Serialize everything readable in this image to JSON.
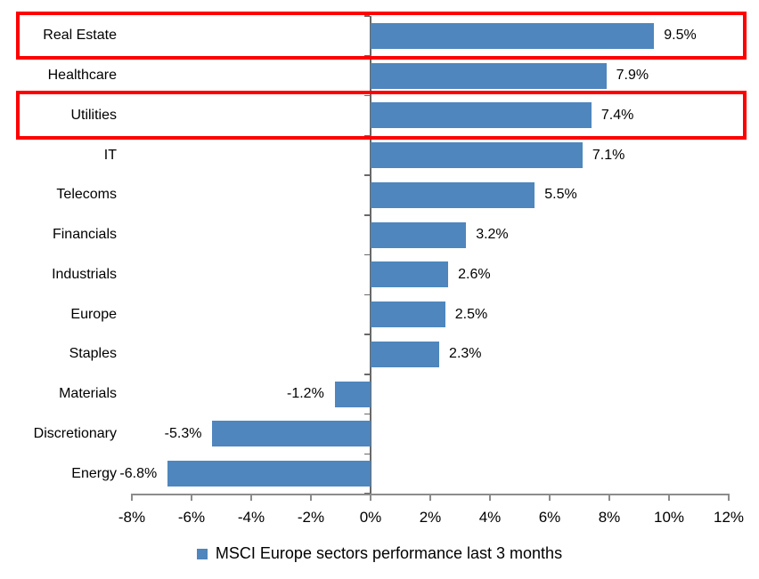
{
  "chart_data": {
    "type": "bar",
    "orientation": "horizontal",
    "title": "",
    "categories": [
      "Real Estate",
      "Healthcare",
      "Utilities",
      "IT",
      "Telecoms",
      "Financials",
      "Industrials",
      "Europe",
      "Staples",
      "Materials",
      "Discretionary",
      "Energy"
    ],
    "values": [
      9.5,
      7.9,
      7.4,
      7.1,
      5.5,
      3.2,
      2.6,
      2.5,
      2.3,
      -1.2,
      -5.3,
      -6.8
    ],
    "value_labels": [
      "9.5%",
      "7.9%",
      "7.4%",
      "7.1%",
      "5.5%",
      "3.2%",
      "2.6%",
      "2.5%",
      "2.3%",
      "-1.2%",
      "-5.3%",
      "-6.8%"
    ],
    "xlim": [
      -8,
      12
    ],
    "x_tick_labels": [
      "-8%",
      "-6%",
      "-4%",
      "-2%",
      "0%",
      "2%",
      "4%",
      "6%",
      "8%",
      "10%",
      "12%"
    ],
    "grid": false,
    "legend_position": "bottom",
    "highlighted_categories": [
      "Real Estate",
      "Utilities"
    ],
    "colors": {
      "bar": "#4E86BD",
      "highlight_box": "#FF0000",
      "zero_axis": "#696969",
      "x_axis": "#8C8C8C",
      "text": "#000000"
    }
  },
  "legend": {
    "label": "MSCI Europe sectors performance last 3 months",
    "marker": "blue-square-icon"
  }
}
